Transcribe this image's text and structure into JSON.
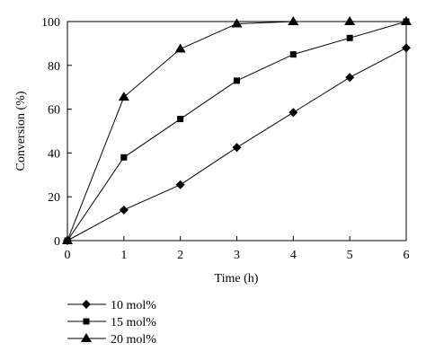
{
  "chart_data": {
    "type": "line",
    "title": "",
    "xlabel": "Time (h)",
    "ylabel": "Conversion (%)",
    "xlim": [
      0,
      6
    ],
    "ylim": [
      0,
      100
    ],
    "x_ticks": [
      0,
      1,
      2,
      3,
      4,
      5,
      6
    ],
    "y_ticks": [
      0,
      20,
      40,
      60,
      80,
      100
    ],
    "grid": false,
    "legend": "bottom-left",
    "series": [
      {
        "name": "10 mol%",
        "marker": "diamond",
        "color": "#000000",
        "x": [
          0,
          1,
          2,
          3,
          4,
          5,
          6
        ],
        "y": [
          0,
          14,
          25.5,
          42.5,
          58.5,
          74.5,
          88
        ]
      },
      {
        "name": "15 mol%",
        "marker": "square",
        "color": "#000000",
        "x": [
          0,
          1,
          2,
          3,
          4,
          5,
          6
        ],
        "y": [
          0,
          38,
          55.5,
          73,
          85,
          92.5,
          100
        ]
      },
      {
        "name": "20 mol%",
        "marker": "triangle",
        "color": "#000000",
        "x": [
          0,
          1,
          2,
          3,
          4,
          5,
          6
        ],
        "y": [
          0,
          65.5,
          87.5,
          99,
          100,
          100,
          100
        ]
      }
    ]
  }
}
